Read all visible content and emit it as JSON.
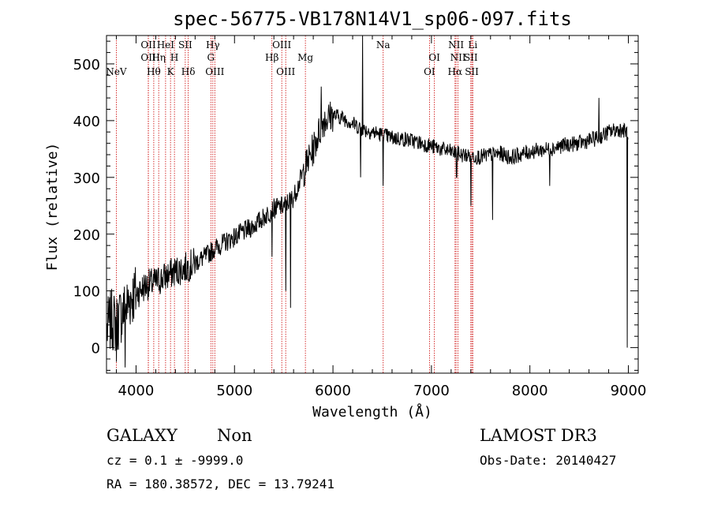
{
  "chart_data": {
    "type": "line",
    "title": "spec-56775-VB178N14V1_sp06-097.fits",
    "xlabel": "Wavelength (Å)",
    "ylabel": "Flux (relative)",
    "xlim": [
      3700,
      9100
    ],
    "ylim": [
      -45,
      550
    ],
    "xticks": [
      4000,
      5000,
      6000,
      7000,
      8000,
      9000
    ],
    "yticks": [
      0,
      100,
      200,
      300,
      400,
      500
    ],
    "spectrum_anchor_points": [
      [
        3700,
        30
      ],
      [
        3750,
        50
      ],
      [
        3800,
        40
      ],
      [
        3850,
        60
      ],
      [
        3900,
        70
      ],
      [
        3950,
        90
      ],
      [
        4000,
        95
      ],
      [
        4100,
        110
      ],
      [
        4200,
        115
      ],
      [
        4300,
        125
      ],
      [
        4400,
        135
      ],
      [
        4500,
        140
      ],
      [
        4600,
        150
      ],
      [
        4700,
        160
      ],
      [
        4800,
        175
      ],
      [
        4900,
        185
      ],
      [
        5000,
        195
      ],
      [
        5100,
        205
      ],
      [
        5200,
        215
      ],
      [
        5300,
        230
      ],
      [
        5400,
        245
      ],
      [
        5500,
        250
      ],
      [
        5600,
        265
      ],
      [
        5700,
        310
      ],
      [
        5800,
        350
      ],
      [
        5900,
        400
      ],
      [
        6000,
        410
      ],
      [
        6100,
        405
      ],
      [
        6200,
        395
      ],
      [
        6300,
        385
      ],
      [
        6400,
        380
      ],
      [
        6500,
        375
      ],
      [
        6600,
        370
      ],
      [
        6700,
        368
      ],
      [
        6800,
        365
      ],
      [
        6900,
        360
      ],
      [
        7000,
        355
      ],
      [
        7100,
        350
      ],
      [
        7200,
        345
      ],
      [
        7300,
        340
      ],
      [
        7400,
        338
      ],
      [
        7500,
        336
      ],
      [
        7600,
        340
      ],
      [
        7700,
        342
      ],
      [
        7800,
        335
      ],
      [
        7900,
        340
      ],
      [
        8000,
        345
      ],
      [
        8100,
        348
      ],
      [
        8200,
        350
      ],
      [
        8300,
        355
      ],
      [
        8400,
        358
      ],
      [
        8500,
        360
      ],
      [
        8600,
        365
      ],
      [
        8700,
        370
      ],
      [
        8800,
        380
      ],
      [
        8900,
        385
      ],
      [
        9000,
        380
      ]
    ],
    "spectrum_features": [
      {
        "wavelength": 6300,
        "flux": 550,
        "kind": "spike"
      },
      {
        "wavelength": 6280,
        "flux": 300,
        "kind": "dip"
      },
      {
        "wavelength": 6510,
        "flux": 285,
        "kind": "dip"
      },
      {
        "wavelength": 5380,
        "flux": 160,
        "kind": "dip"
      },
      {
        "wavelength": 5570,
        "flux": 70,
        "kind": "dip"
      },
      {
        "wavelength": 5520,
        "flux": 100,
        "kind": "dip"
      },
      {
        "wavelength": 7620,
        "flux": 225,
        "kind": "dip"
      },
      {
        "wavelength": 7400,
        "flux": 250,
        "kind": "dip"
      },
      {
        "wavelength": 7255,
        "flux": 300,
        "kind": "dip"
      },
      {
        "wavelength": 8200,
        "flux": 285,
        "kind": "dip"
      },
      {
        "wavelength": 3800,
        "flux": -25,
        "kind": "dip"
      },
      {
        "wavelength": 3890,
        "flux": -35,
        "kind": "dip"
      },
      {
        "wavelength": 8990,
        "flux": 0,
        "kind": "dip"
      },
      {
        "wavelength": 5880,
        "flux": 460,
        "kind": "spike"
      },
      {
        "wavelength": 8700,
        "flux": 440,
        "kind": "spike"
      }
    ],
    "emission_lines": [
      {
        "wavelength": 3800,
        "label": "NeV",
        "row": 2
      },
      {
        "wavelength": 4125,
        "label": "OII",
        "row": 0
      },
      {
        "wavelength": 4125,
        "label": "OII",
        "row": 1
      },
      {
        "wavelength": 4180,
        "label": "Hθ",
        "row": 2
      },
      {
        "wavelength": 4230,
        "label": "Hη",
        "row": 1
      },
      {
        "wavelength": 4300,
        "label": "HeI",
        "row": 0
      },
      {
        "wavelength": 4350,
        "label": "K",
        "row": 2
      },
      {
        "wavelength": 4390,
        "label": "H",
        "row": 1
      },
      {
        "wavelength": 4500,
        "label": "SII",
        "row": 0
      },
      {
        "wavelength": 4530,
        "label": "Hδ",
        "row": 2
      },
      {
        "wavelength": 4780,
        "label": "Hγ",
        "row": 0
      },
      {
        "wavelength": 4760,
        "label": "G",
        "row": 1
      },
      {
        "wavelength": 4800,
        "label": "OIII",
        "row": 2
      },
      {
        "wavelength": 5480,
        "label": "OIII",
        "row": 0
      },
      {
        "wavelength": 5380,
        "label": "Hβ",
        "row": 1
      },
      {
        "wavelength": 5520,
        "label": "OIII",
        "row": 2
      },
      {
        "wavelength": 5720,
        "label": "Mg",
        "row": 1
      },
      {
        "wavelength": 6510,
        "label": "Na",
        "row": 0
      },
      {
        "wavelength": 7030,
        "label": "OI",
        "row": 1
      },
      {
        "wavelength": 6980,
        "label": "OI",
        "row": 2
      },
      {
        "wavelength": 7250,
        "label": "NII",
        "row": 0
      },
      {
        "wavelength": 7270,
        "label": "NII",
        "row": 1
      },
      {
        "wavelength": 7240,
        "label": "Hα",
        "row": 2
      },
      {
        "wavelength": 7420,
        "label": "Li",
        "row": 0
      },
      {
        "wavelength": 7400,
        "label": "SII",
        "row": 1
      },
      {
        "wavelength": 7410,
        "label": "SII",
        "row": 2
      }
    ]
  },
  "info": {
    "object_type": "GALAXY",
    "subclass": "Non",
    "survey": "LAMOST DR3",
    "cz_line": "cz = 0.1 ± -9999.0",
    "obs_date": "Obs-Date: 20140427",
    "coords": "RA = 180.38572, DEC =  13.79241"
  },
  "colors": {
    "spectrum": "#000000",
    "line_marker": "#cc0000",
    "axes": "#000000"
  }
}
